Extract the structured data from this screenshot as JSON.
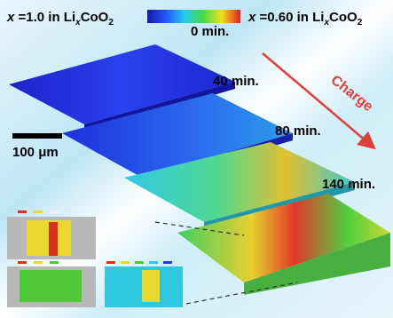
{
  "header": {
    "left": {
      "var": "x",
      "eq": " =1.0 in Li",
      "sub1": "x",
      "formula": "CoO",
      "sub2": "2"
    },
    "right": {
      "var": "x",
      "eq": " =0.60 in Li",
      "sub1": "x",
      "formula": "CoO",
      "sub2": "2"
    }
  },
  "slabs": [
    {
      "label": "0 min."
    },
    {
      "label": "40 min."
    },
    {
      "label": "80 min."
    },
    {
      "label": "140 min."
    }
  ],
  "arrow_label": "Charge",
  "scale_bar": "100 μm"
}
